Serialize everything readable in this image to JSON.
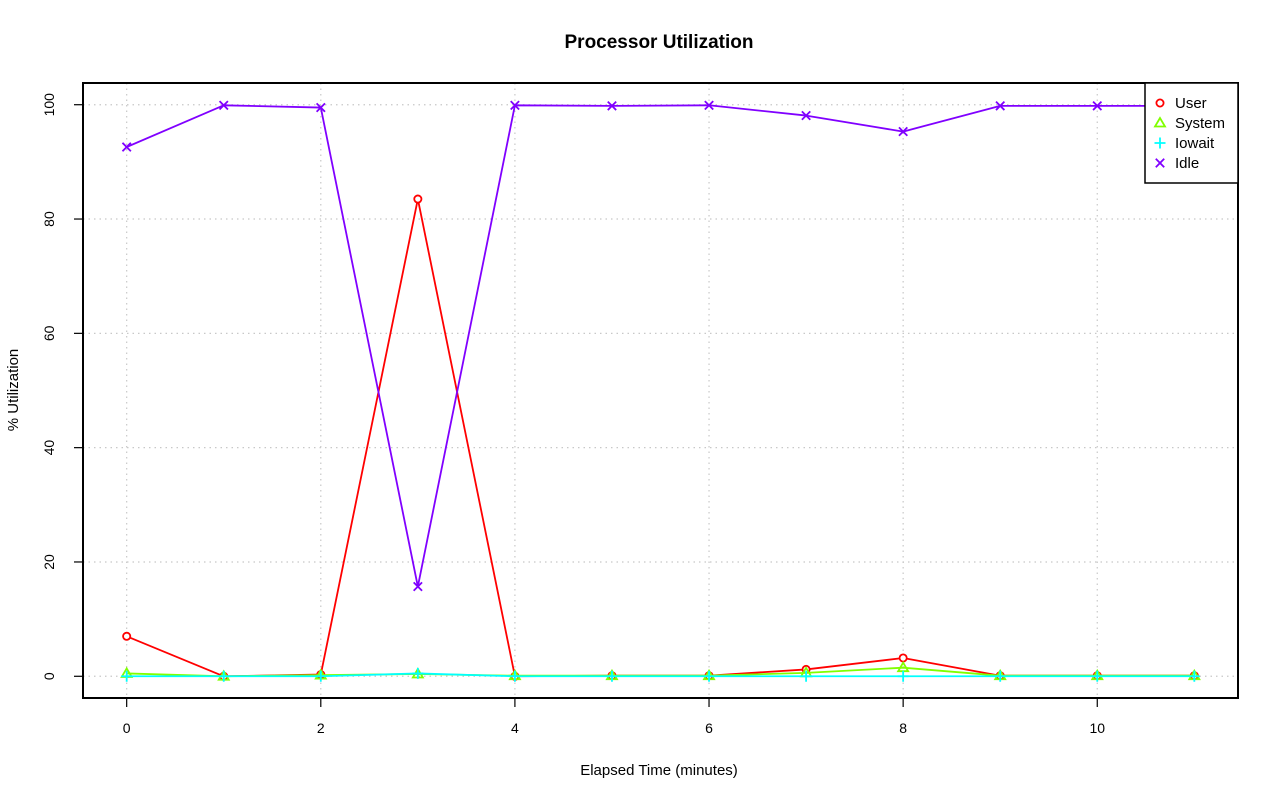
{
  "chart_data": {
    "type": "line",
    "title": "Processor Utilization",
    "xlabel": "Elapsed Time (minutes)",
    "ylabel": "% Utilization",
    "x": [
      0,
      1,
      2,
      3,
      4,
      5,
      6,
      7,
      8,
      9,
      10,
      11
    ],
    "xlim": [
      -0.45,
      11.45
    ],
    "ylim": [
      -3.8,
      103.8
    ],
    "xticks": [
      0,
      2,
      4,
      6,
      8,
      10
    ],
    "yticks": [
      0,
      20,
      40,
      60,
      80,
      100
    ],
    "grid": true,
    "legend_position": "top-right",
    "series": [
      {
        "name": "User",
        "color": "#ff0000",
        "marker": "circle",
        "values": [
          7.0,
          0.0,
          0.3,
          83.5,
          0.0,
          0.1,
          0.1,
          1.2,
          3.2,
          0.1,
          0.1,
          0.1
        ]
      },
      {
        "name": "System",
        "color": "#80ff00",
        "marker": "triangle",
        "values": [
          0.5,
          0.0,
          0.2,
          0.4,
          0.1,
          0.1,
          0.1,
          0.6,
          1.5,
          0.1,
          0.1,
          0.1
        ]
      },
      {
        "name": "Iowait",
        "color": "#00ffff",
        "marker": "plus",
        "values": [
          0.0,
          0.0,
          0.0,
          0.5,
          0.0,
          0.0,
          0.0,
          0.0,
          0.0,
          0.0,
          0.0,
          0.0
        ]
      },
      {
        "name": "Idle",
        "color": "#8000ff",
        "marker": "cross",
        "values": [
          92.6,
          99.9,
          99.5,
          15.7,
          99.9,
          99.8,
          99.9,
          98.1,
          95.3,
          99.8,
          99.8,
          99.8
        ]
      }
    ]
  }
}
